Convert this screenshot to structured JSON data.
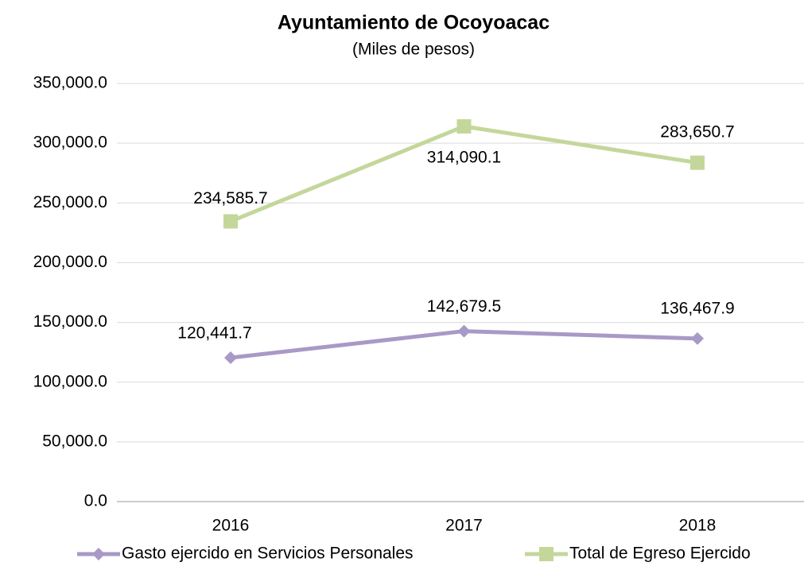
{
  "chart_data": {
    "type": "line",
    "title": "Ayuntamiento de Ocoyoacac",
    "subtitle": "(Miles de pesos)",
    "categories": [
      "2016",
      "2017",
      "2018"
    ],
    "series": [
      {
        "name": "Gasto ejercido en Servicios Personales",
        "color": "#a899c6",
        "marker": "diamond",
        "values": [
          120441.7,
          142679.5,
          136467.9
        ],
        "value_labels": [
          "120,441.7",
          "142,679.5",
          "136,467.9"
        ]
      },
      {
        "name": "Total de Egreso Ejercido",
        "color": "#c4d79b",
        "marker": "square",
        "values": [
          234585.7,
          314090.1,
          283650.7
        ],
        "value_labels": [
          "234,585.7",
          "314,090.1",
          "283,650.7"
        ]
      }
    ],
    "ylim": [
      0,
      350000
    ],
    "yticks": [
      {
        "value": 0,
        "label": "0.0"
      },
      {
        "value": 50000,
        "label": "50,000.0"
      },
      {
        "value": 100000,
        "label": "100,000.0"
      },
      {
        "value": 150000,
        "label": "150,000.0"
      },
      {
        "value": 200000,
        "label": "200,000.0"
      },
      {
        "value": 250000,
        "label": "250,000.0"
      },
      {
        "value": 300000,
        "label": "300,000.0"
      },
      {
        "value": 350000,
        "label": "350,000.0"
      }
    ],
    "grid": true,
    "legend": "bottom"
  }
}
